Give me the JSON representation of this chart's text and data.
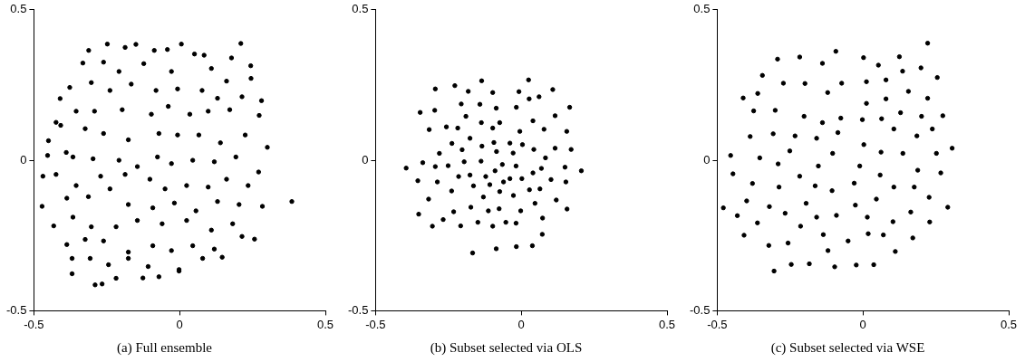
{
  "chart_data": [
    {
      "type": "scatter",
      "title": "(a) Full ensemble",
      "color": "#000000",
      "marker": "circle",
      "grid": false,
      "xlim": [
        -0.5,
        0.5
      ],
      "ylim": [
        -0.5,
        0.5
      ],
      "xticks": [
        -0.5,
        0,
        0.5
      ],
      "yticks": [
        -0.5,
        0,
        0.5
      ],
      "x": [
        -0.248,
        -0.15,
        0.006,
        0.21,
        -0.312,
        -0.332,
        -0.41,
        -0.424,
        -0.45,
        -0.469,
        -0.472,
        -0.432,
        -0.387,
        -0.369,
        -0.369,
        -0.29,
        -0.266,
        -0.218,
        -0.126,
        -0.071,
        -0.002,
        0.079,
        0.146,
        0.257,
        0.284,
        0.385,
        0.271,
        0.301,
        0.273,
        0.281,
        0.244,
        0.245,
        0.178,
        0.084,
        -0.042,
        -0.087,
        -0.187,
        -0.389,
        -0.453,
        -0.261,
        -0.208,
        -0.123,
        -0.028,
        0.051,
        0.109,
        0.161,
        -0.377,
        -0.303,
        -0.239,
        -0.166,
        -0.081,
        -0.007,
        0.077,
        0.13,
        0.214,
        -0.355,
        -0.292,
        -0.197,
        -0.097,
        -0.039,
        0.035,
        0.098,
        0.172,
        -0.408,
        -0.324,
        -0.261,
        -0.176,
        -0.071,
        -0.007,
        0.066,
        0.14,
        0.225,
        -0.366,
        -0.297,
        -0.208,
        -0.145,
        -0.076,
        -0.028,
        0.045,
        0.119,
        0.193,
        -0.424,
        -0.355,
        -0.271,
        -0.187,
        -0.102,
        -0.05,
        0.024,
        0.098,
        0.161,
        0.235,
        -0.387,
        -0.313,
        -0.239,
        -0.176,
        -0.092,
        -0.018,
        0.056,
        0.13,
        0.204,
        -0.366,
        -0.303,
        -0.218,
        -0.145,
        -0.06,
        0.024,
        0.109,
        0.182,
        -0.324,
        -0.261,
        -0.176,
        -0.092,
        -0.028,
        0.045,
        0.119,
        0.214,
        -0.307,
        -0.244,
        -0.176,
        -0.108,
        -0.002
      ],
      "values": [
        0.386,
        0.385,
        0.386,
        0.388,
        0.365,
        0.323,
        0.205,
        0.126,
        0.065,
        -0.053,
        -0.153,
        -0.218,
        -0.28,
        -0.326,
        -0.377,
        -0.414,
        -0.411,
        -0.392,
        -0.391,
        -0.387,
        -0.368,
        -0.326,
        -0.322,
        -0.262,
        -0.153,
        -0.137,
        -0.039,
        0.043,
        0.149,
        0.198,
        0.314,
        0.272,
        0.34,
        0.349,
        0.368,
        0.365,
        0.375,
        0.026,
        0.016,
        0.326,
        0.295,
        0.321,
        0.295,
        0.353,
        0.305,
        0.263,
        0.242,
        0.258,
        0.232,
        0.253,
        0.232,
        0.237,
        0.232,
        0.206,
        0.211,
        0.163,
        0.163,
        0.168,
        0.153,
        0.179,
        0.153,
        0.163,
        0.168,
        0.116,
        0.105,
        0.089,
        0.068,
        0.089,
        0.084,
        0.084,
        0.058,
        0.084,
        0.011,
        0.005,
        0,
        -0.021,
        0.011,
        -0.011,
        0,
        -0.005,
        0.011,
        -0.047,
        -0.084,
        -0.053,
        -0.047,
        -0.063,
        -0.095,
        -0.084,
        -0.089,
        -0.063,
        -0.084,
        -0.126,
        -0.121,
        -0.095,
        -0.147,
        -0.158,
        -0.142,
        -0.168,
        -0.137,
        -0.147,
        -0.189,
        -0.221,
        -0.221,
        -0.2,
        -0.211,
        -0.2,
        -0.232,
        -0.211,
        -0.263,
        -0.268,
        -0.305,
        -0.284,
        -0.3,
        -0.284,
        -0.295,
        -0.253,
        -0.326,
        -0.347,
        -0.326,
        -0.353,
        -0.363
      ]
    },
    {
      "type": "scatter",
      "title": "(b) Subset selected via OLS",
      "color": "#000000",
      "marker": "circle",
      "grid": false,
      "xlim": [
        -0.5,
        0.5
      ],
      "ylim": [
        -0.5,
        0.5
      ],
      "xticks": [
        -0.5,
        0,
        0.5
      ],
      "yticks": [
        -0.5,
        0,
        0.5
      ],
      "x": [
        -0.136,
        0.025,
        -0.295,
        -0.228,
        -0.182,
        -0.098,
        -0.008,
        0.108,
        0.027,
        0.061,
        -0.347,
        -0.297,
        -0.206,
        -0.142,
        -0.086,
        -0.017,
        0.166,
        -0.19,
        0.116,
        0.04,
        -0.316,
        -0.257,
        -0.218,
        -0.137,
        -0.098,
        -0.074,
        -0.005,
        0.078,
        0.156,
        -0.176,
        -0.238,
        -0.135,
        -0.094,
        -0.039,
        0.004,
        -0.203,
        -0.085,
        -0.028,
        0.043,
        0.116,
        0.171,
        -0.281,
        0.083,
        -0.395,
        -0.338,
        -0.295,
        -0.251,
        -0.196,
        -0.138,
        -0.065,
        -0.018,
        -0.09,
        0.069,
        0.15,
        0.206,
        0.04,
        -0.355,
        -0.288,
        -0.215,
        -0.176,
        -0.122,
        -0.164,
        -0.108,
        -0.061,
        -0.039,
        0.002,
        0.102,
        0.153,
        -0.239,
        -0.074,
        0.028,
        0.064,
        -0.318,
        -0.13,
        -0.027,
        0.12,
        0.047,
        -0.173,
        -0.352,
        -0.232,
        -0.113,
        -0.076,
        -0.002,
        0.157,
        -0.268,
        -0.305,
        -0.208,
        -0.149,
        -0.098,
        -0.053,
        -0.018,
        0.073,
        0.072,
        -0.167,
        -0.086,
        -0.017,
        0.038
      ],
      "values": [
        0.264,
        0.267,
        0.237,
        0.248,
        0.229,
        0.225,
        0.228,
        0.235,
        0.204,
        0.211,
        0.159,
        0.166,
        0.187,
        0.186,
        0.173,
        0.176,
        0.176,
        0.146,
        0.148,
        0.131,
        0.102,
        0.111,
        0.107,
        0.125,
        0.107,
        0.125,
        0.096,
        0.103,
        0.096,
        0.073,
        0.056,
        0.047,
        0.059,
        0.057,
        0.052,
        0.035,
        0.029,
        0.024,
        0.036,
        0.04,
        0.036,
        0.023,
        0.008,
        -0.026,
        -0.008,
        -0.021,
        -0.018,
        -0.005,
        -0.003,
        -0.014,
        -0.019,
        -0.035,
        -0.027,
        -0.023,
        -0.035,
        -0.042,
        -0.068,
        -0.072,
        -0.054,
        -0.049,
        -0.054,
        -0.085,
        -0.081,
        -0.072,
        -0.061,
        -0.061,
        -0.064,
        -0.072,
        -0.102,
        -0.104,
        -0.098,
        -0.095,
        -0.129,
        -0.122,
        -0.117,
        -0.132,
        -0.143,
        -0.156,
        -0.179,
        -0.171,
        -0.168,
        -0.161,
        -0.168,
        -0.162,
        -0.197,
        -0.219,
        -0.218,
        -0.206,
        -0.219,
        -0.206,
        -0.209,
        -0.192,
        -0.246,
        -0.308,
        -0.294,
        -0.287,
        -0.284
      ]
    },
    {
      "type": "scatter",
      "title": "(c) Subset selected via WSE",
      "color": "#000000",
      "marker": "circle",
      "grid": false,
      "xlim": [
        -0.5,
        0.5
      ],
      "ylim": [
        -0.5,
        0.5
      ],
      "xticks": [
        -0.5,
        0,
        0.5
      ],
      "yticks": [
        -0.5,
        0,
        0.5
      ],
      "x": [
        0.222,
        -0.293,
        -0.217,
        -0.139,
        -0.093,
        0.002,
        0.053,
        0.125,
        0.199,
        0.136,
        -0.345,
        -0.273,
        -0.199,
        -0.073,
        0.012,
        0.079,
        0.255,
        -0.411,
        -0.361,
        -0.121,
        0.156,
        0.012,
        0.079,
        0.222,
        -0.375,
        -0.301,
        -0.202,
        -0.139,
        -0.076,
        -0.002,
        0.064,
        0.129,
        0.201,
        0.274,
        0.106,
        0.238,
        -0.387,
        -0.308,
        -0.233,
        -0.159,
        -0.086,
        0.185,
        0.003,
        -0.454,
        -0.354,
        -0.251,
        -0.104,
        0.062,
        0.137,
        0.252,
        0.306,
        -0.446,
        -0.291,
        -0.153,
        -0.011,
        -0.217,
        0.059,
        0.188,
        0.267,
        -0.379,
        -0.288,
        -0.164,
        -0.106,
        -0.03,
        0.106,
        0.176,
        0.227,
        -0.479,
        -0.399,
        -0.321,
        -0.195,
        -0.026,
        0.046,
        0.291,
        -0.431,
        -0.362,
        -0.267,
        -0.159,
        -0.091,
        0.015,
        0.103,
        0.164,
        0.229,
        -0.408,
        -0.214,
        -0.136,
        -0.051,
        0.018,
        0.07,
        0.171,
        -0.323,
        -0.257,
        -0.12,
        0.111,
        -0.305,
        -0.246,
        -0.184,
        -0.097,
        -0.023,
        0.037
      ],
      "values": [
        0.389,
        0.336,
        0.343,
        0.322,
        0.362,
        0.341,
        0.316,
        0.344,
        0.307,
        0.296,
        0.282,
        0.256,
        0.255,
        0.256,
        0.261,
        0.267,
        0.275,
        0.207,
        0.222,
        0.225,
        0.229,
        0.189,
        0.204,
        0.206,
        0.164,
        0.166,
        0.146,
        0.125,
        0.14,
        0.135,
        0.138,
        0.158,
        0.146,
        0.148,
        0.104,
        0.104,
        0.079,
        0.088,
        0.081,
        0.073,
        0.092,
        0.081,
        0.052,
        0.016,
        0.008,
        0.031,
        0.023,
        0.027,
        0.023,
        0.023,
        0.04,
        -0.045,
        -0.012,
        -0.019,
        -0.019,
        -0.053,
        -0.049,
        -0.033,
        -0.042,
        -0.077,
        -0.089,
        -0.085,
        -0.101,
        -0.076,
        -0.089,
        -0.089,
        -0.123,
        -0.158,
        -0.135,
        -0.154,
        -0.143,
        -0.149,
        -0.129,
        -0.156,
        -0.184,
        -0.208,
        -0.176,
        -0.189,
        -0.183,
        -0.189,
        -0.204,
        -0.172,
        -0.205,
        -0.249,
        -0.219,
        -0.247,
        -0.268,
        -0.244,
        -0.248,
        -0.258,
        -0.283,
        -0.275,
        -0.3,
        -0.303,
        -0.368,
        -0.346,
        -0.344,
        -0.354,
        -0.348,
        -0.347
      ]
    }
  ]
}
